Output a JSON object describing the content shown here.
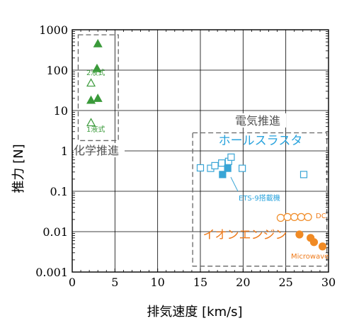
{
  "colors": {
    "chemical": "#3a9a3a",
    "hall": "#39a5d6",
    "hall_text": "#29a3dd",
    "ion": "#f08a24",
    "ion_text": "#ef7a1a",
    "box": "#666666",
    "group_text": "#555555",
    "grid": "#000000"
  },
  "chart_data": {
    "type": "scatter",
    "xlabel": "排気速度 [km/s]",
    "ylabel": "推力 [N]",
    "xlim": [
      0,
      30
    ],
    "ylim": [
      0.001,
      1000
    ],
    "yscale": "log",
    "grid": true,
    "xticks": [
      "0",
      "5",
      "10",
      "15",
      "20",
      "25",
      "30"
    ],
    "yticks": [
      "0.001",
      "0.01",
      "0.1",
      "1",
      "10",
      "100",
      "1000"
    ],
    "groups": [
      {
        "label": "化学推進",
        "box": {
          "x": [
            0.7,
            5.4
          ],
          "y": [
            1.8,
            750
          ]
        },
        "color": "chemical",
        "annotations": [
          "2液式",
          "1液式"
        ],
        "points": [
          {
            "x": 3.0,
            "y": 450,
            "marker": "triangle-filled"
          },
          {
            "x": 2.9,
            "y": 110,
            "marker": "triangle-filled"
          },
          {
            "x": 2.2,
            "y": 48,
            "marker": "triangle-open"
          },
          {
            "x": 2.2,
            "y": 18,
            "marker": "triangle-filled"
          },
          {
            "x": 3.0,
            "y": 20,
            "marker": "triangle-filled"
          },
          {
            "x": 2.2,
            "y": 5.0,
            "marker": "triangle-open"
          }
        ]
      },
      {
        "label": "電気推進",
        "box": {
          "x": [
            14.1,
            29.8
          ],
          "y": [
            0.0014,
            2.8
          ]
        },
        "color": "box"
      },
      {
        "label": "ホールスラスタ",
        "color": "hall",
        "annotations": [
          "ETS-9搭載機"
        ],
        "points": [
          {
            "x": 15.0,
            "y": 0.38,
            "marker": "square-open"
          },
          {
            "x": 16.2,
            "y": 0.37,
            "marker": "square-open"
          },
          {
            "x": 16.7,
            "y": 0.43,
            "marker": "square-open"
          },
          {
            "x": 17.5,
            "y": 0.5,
            "marker": "square-open"
          },
          {
            "x": 18.3,
            "y": 0.55,
            "marker": "square-open"
          },
          {
            "x": 18.6,
            "y": 0.7,
            "marker": "square-open"
          },
          {
            "x": 19.9,
            "y": 0.37,
            "marker": "square-open"
          },
          {
            "x": 27.1,
            "y": 0.26,
            "marker": "square-open"
          },
          {
            "x": 17.6,
            "y": 0.26,
            "marker": "square-filled"
          },
          {
            "x": 18.2,
            "y": 0.37,
            "marker": "square-filled"
          }
        ]
      },
      {
        "label": "イオンエンジン",
        "color": "ion",
        "annotations": [
          "DC",
          "Microwave"
        ],
        "points": [
          {
            "x": 24.4,
            "y": 0.022,
            "marker": "circle-open"
          },
          {
            "x": 25.2,
            "y": 0.023,
            "marker": "circle-open"
          },
          {
            "x": 26.0,
            "y": 0.023,
            "marker": "circle-open"
          },
          {
            "x": 26.8,
            "y": 0.023,
            "marker": "circle-open"
          },
          {
            "x": 27.6,
            "y": 0.023,
            "marker": "circle-open"
          },
          {
            "x": 26.6,
            "y": 0.0085,
            "marker": "circle-filled"
          },
          {
            "x": 27.9,
            "y": 0.007,
            "marker": "circle-filled"
          },
          {
            "x": 28.3,
            "y": 0.0055,
            "marker": "circle-filled"
          },
          {
            "x": 29.3,
            "y": 0.0043,
            "marker": "circle-filled"
          }
        ]
      }
    ]
  }
}
